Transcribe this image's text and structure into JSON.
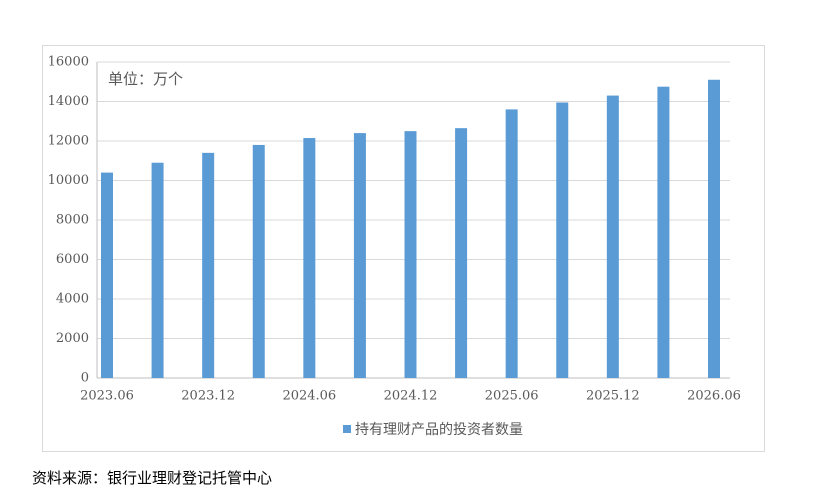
{
  "chart_data": {
    "type": "bar",
    "annotation": "单位：万个",
    "source": "资料来源：银行业理财登记托管中心",
    "categories": [
      "2023.06",
      null,
      "2023.12",
      null,
      "2024.06",
      null,
      "2024.12",
      null,
      "2025.06",
      null,
      "2025.12",
      null,
      "2026.06"
    ],
    "series": [
      {
        "name": "持有理财产品的投资者数量",
        "color": "#5b9bd5",
        "values": [
          10400,
          10900,
          11400,
          11800,
          12150,
          12400,
          12500,
          12650,
          13600,
          13950,
          14300,
          14750,
          15100
        ]
      }
    ],
    "ylim": [
      0,
      16000
    ],
    "yticks": [
      0,
      2000,
      4000,
      6000,
      8000,
      10000,
      12000,
      14000,
      16000
    ],
    "grid": true,
    "legend": "bottom"
  }
}
